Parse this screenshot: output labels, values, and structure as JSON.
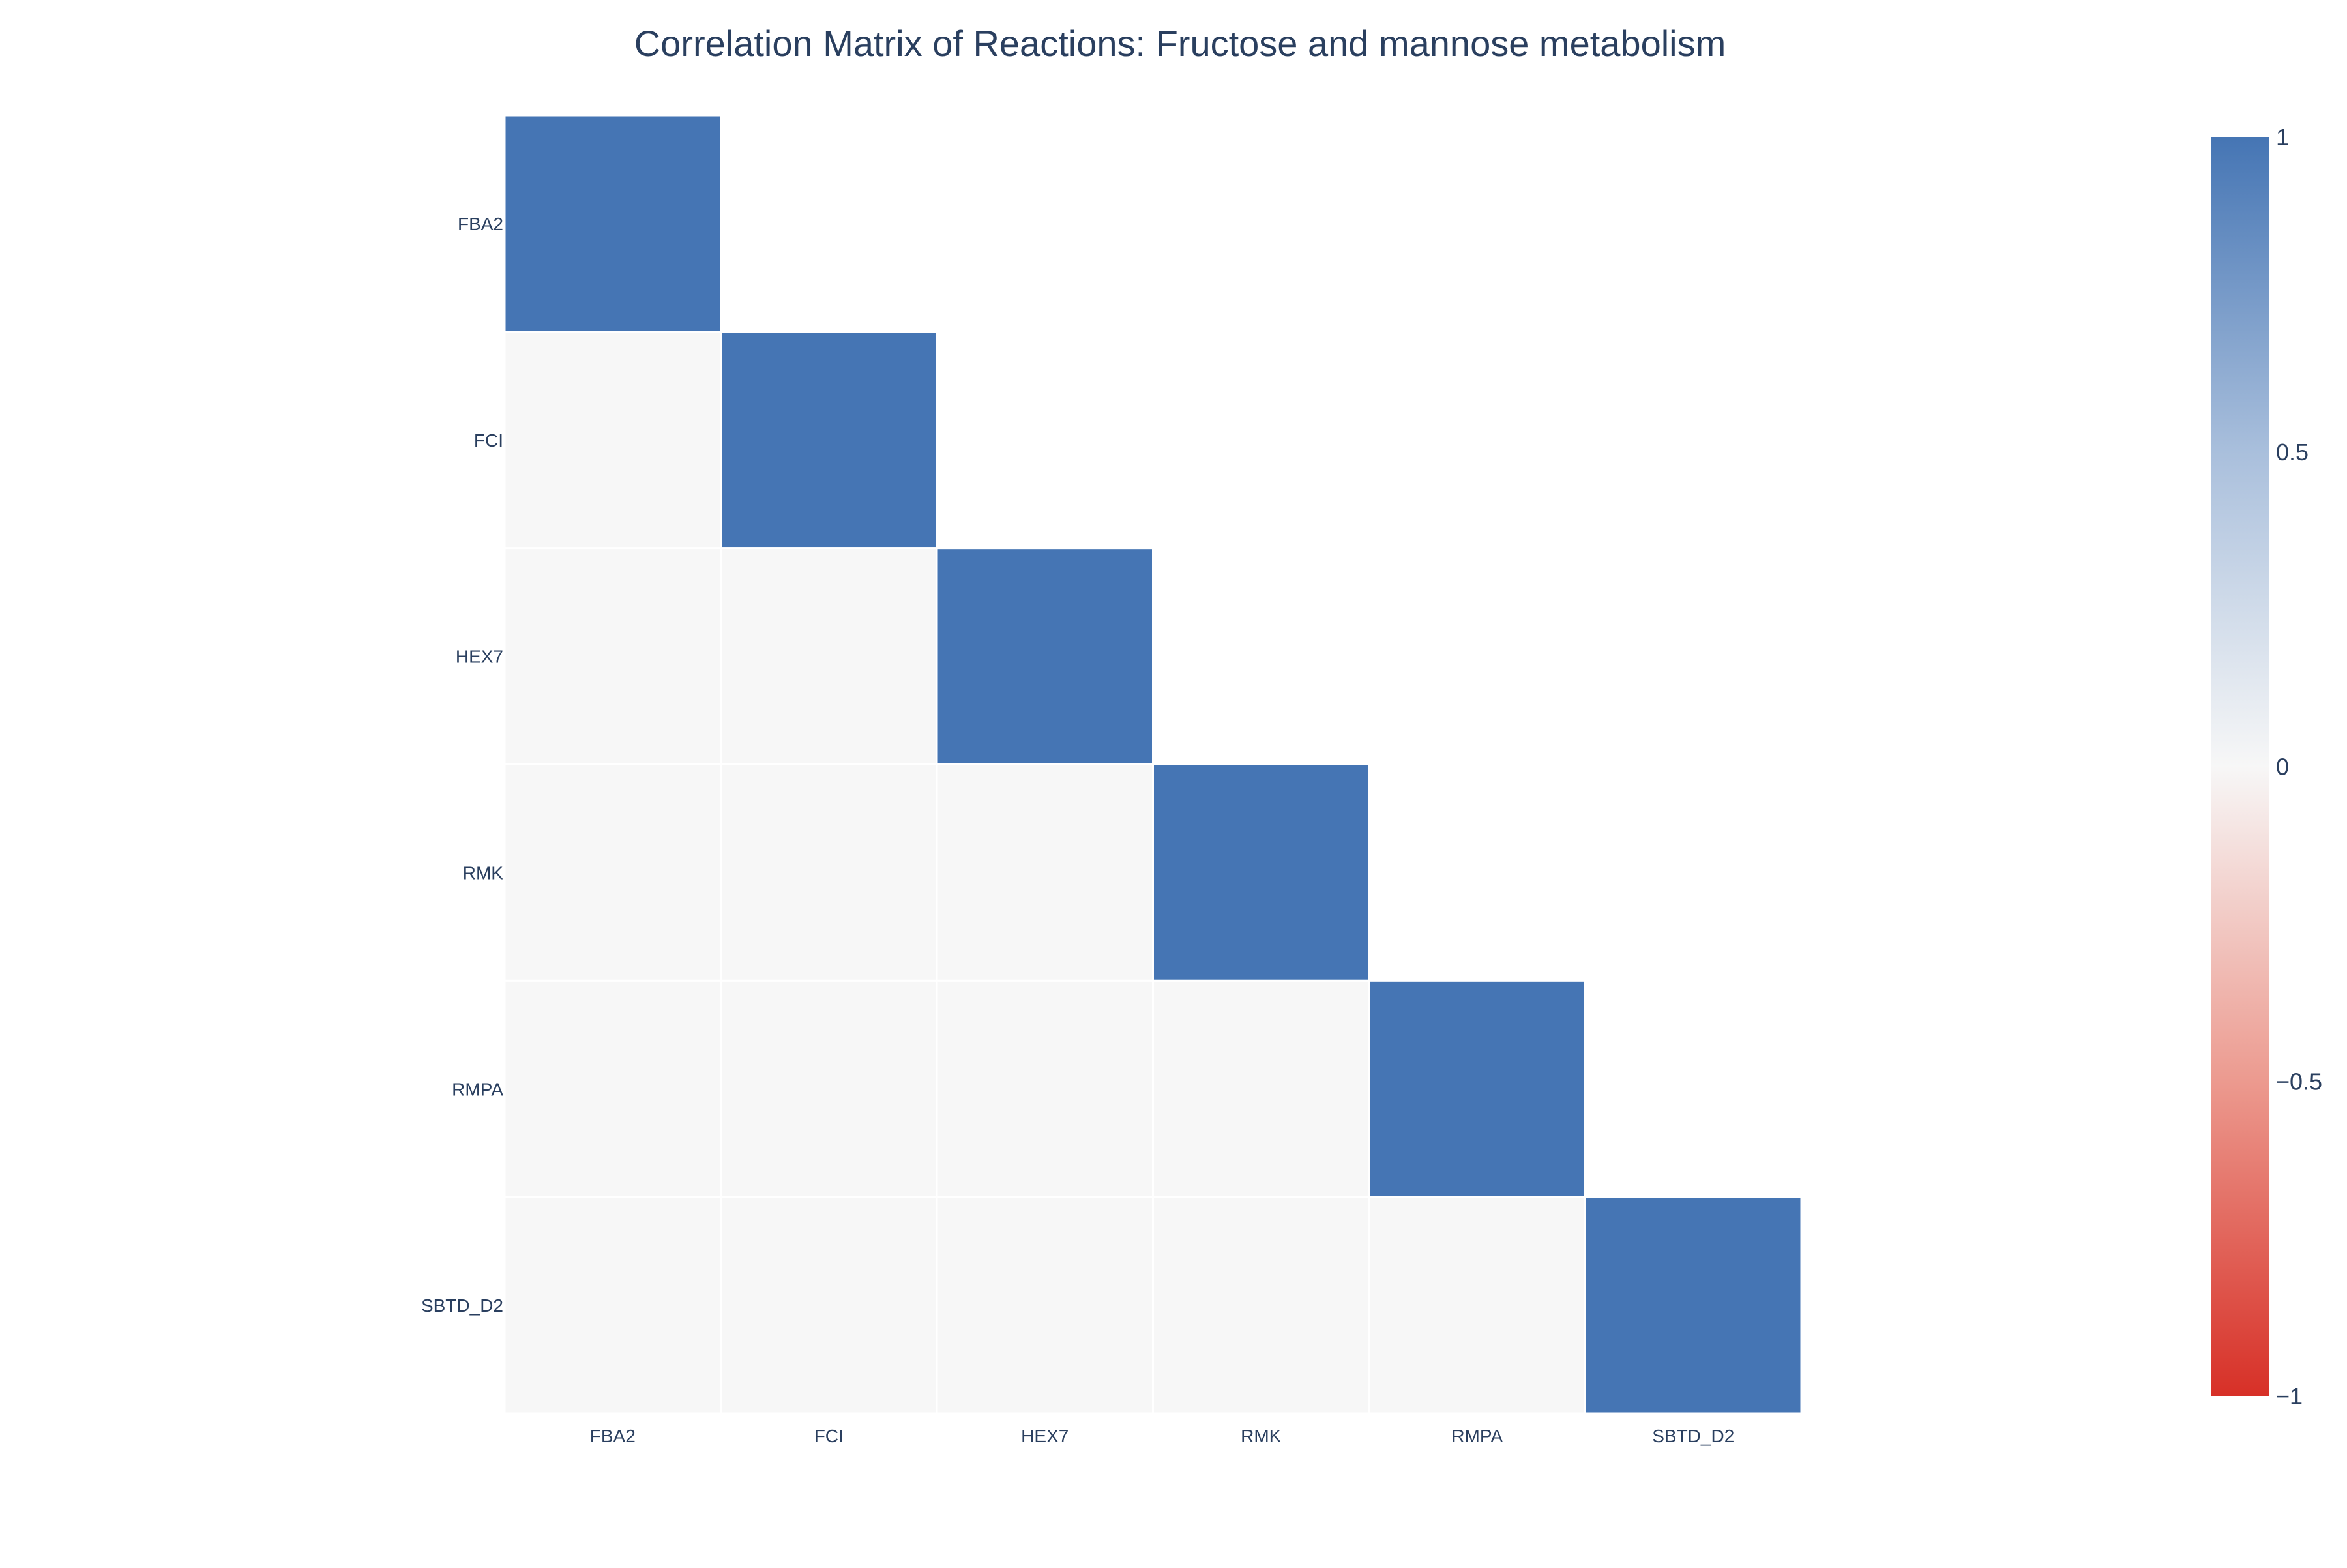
{
  "chart_data": {
    "type": "heatmap",
    "title": "Correlation Matrix of Reactions: Fructose and mannose metabolism",
    "x_categories": [
      "FBA2",
      "FCI",
      "HEX7",
      "RMK",
      "RMPA",
      "SBTD_D2"
    ],
    "y_categories": [
      "FBA2",
      "FCI",
      "HEX7",
      "RMK",
      "RMPA",
      "SBTD_D2"
    ],
    "matrix": [
      [
        1,
        null,
        null,
        null,
        null,
        null
      ],
      [
        0,
        1,
        null,
        null,
        null,
        null
      ],
      [
        0,
        0,
        1,
        null,
        null,
        null
      ],
      [
        0,
        0,
        0,
        1,
        null,
        null
      ],
      [
        0,
        0,
        0,
        0,
        1,
        null
      ],
      [
        0,
        0,
        0,
        0,
        0,
        1
      ]
    ],
    "mask": "upper-triangle-hidden",
    "zmin": -1,
    "zmax": 1,
    "colorscale": [
      [
        0,
        "#d73027"
      ],
      [
        0.25,
        "#ec9a8f"
      ],
      [
        0.5,
        "#f7f7f7"
      ],
      [
        0.75,
        "#a9bfdc"
      ],
      [
        1,
        "#4575b4"
      ]
    ],
    "colorbar": {
      "tick_values": [
        1,
        0.5,
        0,
        -0.5,
        -1
      ],
      "tick_labels": [
        "1",
        "0.5",
        "0",
        "−0.5",
        "−1"
      ]
    },
    "colors": {
      "text": "#2a3f5f",
      "cell_gap": "#ffffff"
    }
  }
}
